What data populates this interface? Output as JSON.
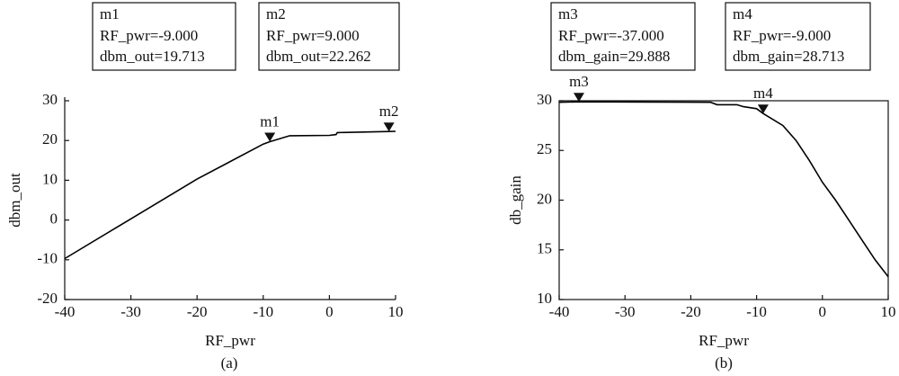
{
  "chart_data": [
    {
      "type": "line",
      "caption": "(a)",
      "xlabel": "RF_pwr",
      "ylabel": "dbm_out",
      "xlim": [
        -40,
        10
      ],
      "ylim": [
        -20,
        30
      ],
      "xticks": [
        -40,
        -30,
        -20,
        -10,
        0,
        10
      ],
      "yticks": [
        -20,
        -10,
        0,
        10,
        20,
        30
      ],
      "frame": false,
      "color": "#000000",
      "x": [
        -40,
        -30,
        -20,
        -10,
        -9,
        -6,
        0,
        1,
        1.2,
        9,
        10
      ],
      "values": [
        -9.7,
        0.3,
        10.3,
        19.1,
        19.713,
        21.2,
        21.3,
        21.5,
        22.0,
        22.262,
        22.3
      ],
      "markers": [
        {
          "name": "m1",
          "x": -9,
          "y": 19.713,
          "lines": [
            "RF_pwr=-9.000",
            "dbm_out=19.713"
          ]
        },
        {
          "name": "m2",
          "x": 9,
          "y": 22.262,
          "lines": [
            "RF_pwr=9.000",
            "dbm_out=22.262"
          ]
        }
      ]
    },
    {
      "type": "line",
      "caption": "(b)",
      "xlabel": "RF_pwr",
      "ylabel": "db_gain",
      "xlim": [
        -40,
        10
      ],
      "ylim": [
        10,
        30
      ],
      "xticks": [
        -40,
        -30,
        -20,
        -10,
        0,
        10
      ],
      "yticks": [
        10,
        15,
        20,
        25,
        30
      ],
      "frame": true,
      "color": "#000000",
      "x": [
        -40,
        -37,
        -17,
        -16,
        -13,
        -12,
        -10,
        -9,
        -6,
        -4,
        -2,
        0,
        2,
        4,
        6,
        8,
        10
      ],
      "values": [
        29.85,
        29.888,
        29.85,
        29.6,
        29.6,
        29.4,
        29.2,
        28.713,
        27.5,
        26.0,
        24.0,
        21.8,
        20.0,
        18.0,
        16.0,
        14.0,
        12.3
      ],
      "markers": [
        {
          "name": "m3",
          "x": -37,
          "y": 29.888,
          "lines": [
            "RF_pwr=-37.000",
            "dbm_gain=29.888"
          ]
        },
        {
          "name": "m4",
          "x": -9,
          "y": 28.713,
          "lines": [
            "RF_pwr=-9.000",
            "dbm_gain=28.713"
          ]
        }
      ]
    }
  ]
}
